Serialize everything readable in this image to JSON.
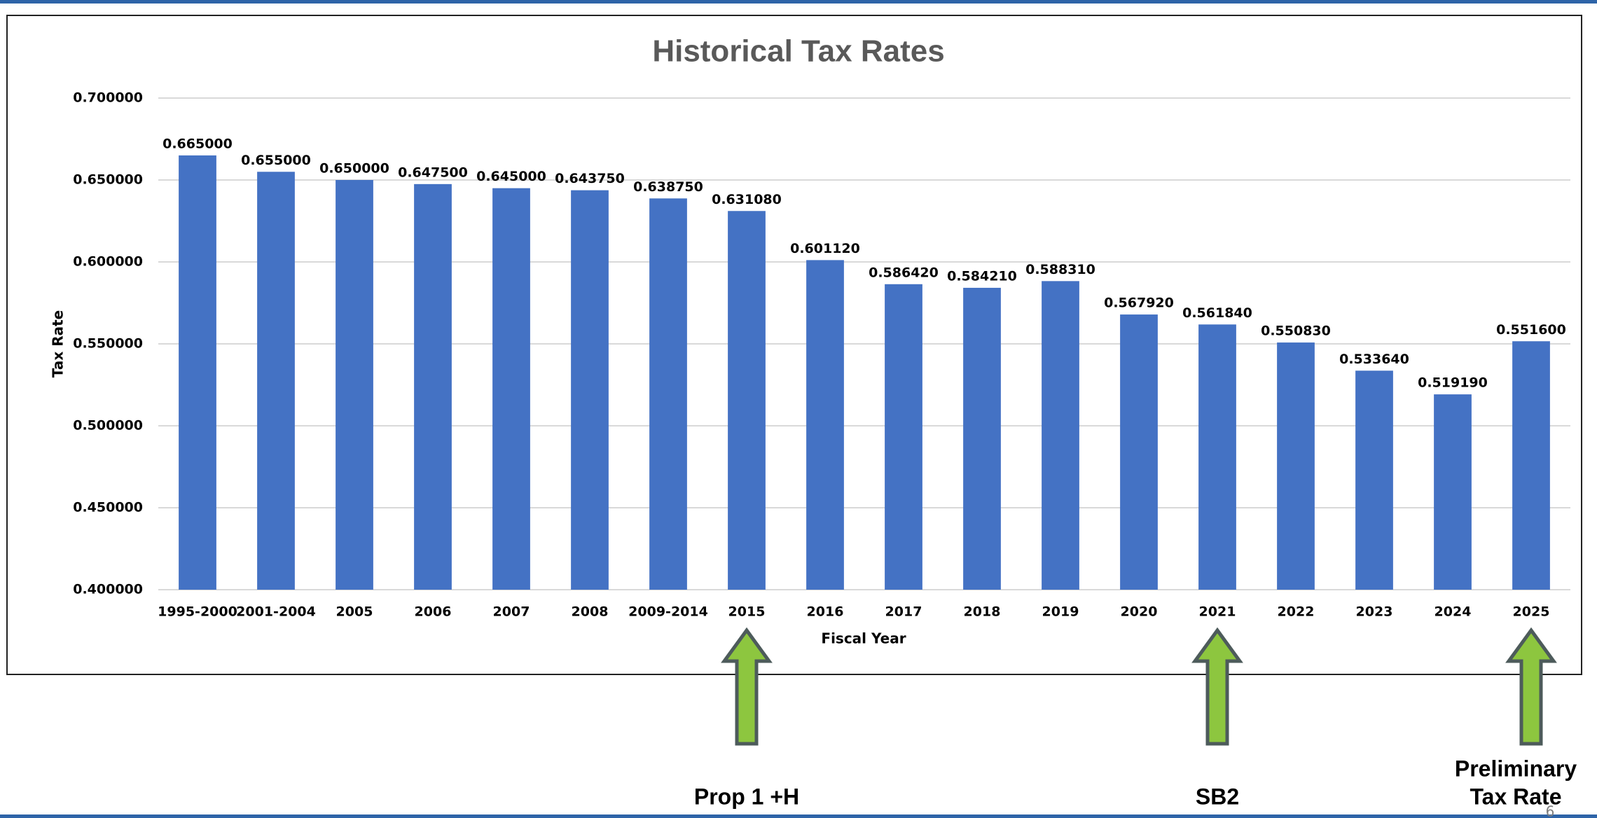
{
  "chart_data": {
    "type": "bar",
    "title": "Historical Tax Rates",
    "x_label": "Fiscal Year",
    "y_label": "Tax Rate",
    "categories": [
      "1995-2000",
      "2001-2004",
      "2005",
      "2006",
      "2007",
      "2008",
      "2009-2014",
      "2015",
      "2016",
      "2017",
      "2018",
      "2019",
      "2020",
      "2021",
      "2022",
      "2023",
      "2024",
      "2025"
    ],
    "values": [
      0.665,
      0.655,
      0.65,
      0.6475,
      0.645,
      0.64375,
      0.63875,
      0.63108,
      0.60112,
      0.58642,
      0.58421,
      0.58831,
      0.56792,
      0.56184,
      0.55083,
      0.53364,
      0.51919,
      0.5516
    ],
    "value_labels": [
      "0.665000",
      "0.655000",
      "0.650000",
      "0.647500",
      "0.645000",
      "0.643750",
      "0.638750",
      "0.631080",
      "0.601120",
      "0.586420",
      "0.584210",
      "0.588310",
      "0.567920",
      "0.561840",
      "0.550830",
      "0.533640",
      "0.519190",
      "0.551600"
    ],
    "color": "#4472c4",
    "ylim": [
      0.4,
      0.7
    ],
    "yticks": [
      {
        "value": 0.4,
        "label": "0.400000"
      },
      {
        "value": 0.45,
        "label": "0.450000"
      },
      {
        "value": 0.5,
        "label": "0.500000"
      },
      {
        "value": 0.55,
        "label": "0.550000"
      },
      {
        "value": 0.6,
        "label": "0.600000"
      },
      {
        "value": 0.65,
        "label": "0.650000"
      },
      {
        "value": 0.7,
        "label": "0.700000"
      }
    ],
    "grid": true,
    "annotations": [
      {
        "category": "2015",
        "lines": [
          "Prop 1 +H"
        ]
      },
      {
        "category": "2021",
        "lines": [
          "SB2"
        ]
      },
      {
        "category": "2025",
        "lines": [
          "Preliminary",
          "Tax Rate"
        ]
      }
    ]
  },
  "page_number": "6"
}
